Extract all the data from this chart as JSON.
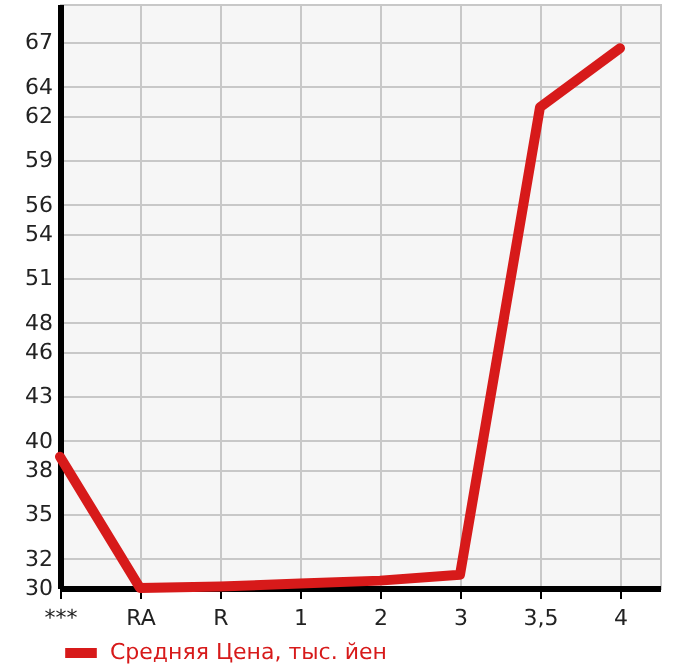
{
  "chart_data": {
    "type": "line",
    "categories": [
      "***",
      "RA",
      "R",
      "1",
      "2",
      "3",
      "3,5",
      "4"
    ],
    "series": [
      {
        "name": "Средняя Цена, тыс. йен",
        "color": "#d71a1a",
        "values": [
          38.9,
          30.0,
          30.1,
          30.3,
          30.5,
          30.9,
          62.6,
          66.6
        ]
      }
    ],
    "ylim": [
      30,
      69.6
    ],
    "yticks": [
      30,
      32,
      35,
      38,
      40,
      43,
      46,
      48,
      51,
      54,
      56,
      59,
      62,
      64,
      67
    ],
    "grid": true,
    "legend": "bottom",
    "marker": "none",
    "line_style": "solid"
  }
}
